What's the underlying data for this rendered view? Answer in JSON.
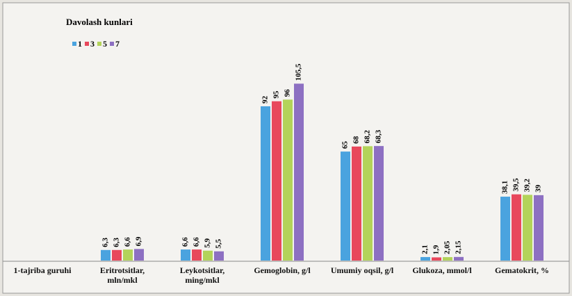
{
  "chart_data": {
    "type": "bar",
    "legend_title": "Davolash kunlari",
    "categories": [
      "1-tajriba guruhi",
      "Eritrotsitlar, mln/mkl",
      "Leykotsitlar, ming/mkl",
      "Gemoglobin, g/l",
      "Umumiy oqsil, g/l",
      "Glukoza, mmol/l",
      "Gematokrit, %"
    ],
    "series": [
      {
        "name": "1",
        "color": "#4aa3df",
        "values": [
          null,
          6.3,
          6.6,
          92,
          65,
          2.1,
          38.1
        ],
        "value_labels": [
          null,
          "6,3",
          "6,6",
          "92",
          "65",
          "2,1",
          "38,1"
        ]
      },
      {
        "name": "3",
        "color": "#e8485c",
        "values": [
          null,
          6.3,
          6.6,
          95,
          68,
          1.9,
          39.5
        ],
        "value_labels": [
          null,
          "6,3",
          "6,6",
          "95",
          "68",
          "1,9",
          "39,5"
        ]
      },
      {
        "name": "5",
        "color": "#b3d35a",
        "values": [
          null,
          6.6,
          5.9,
          96,
          68.2,
          2.05,
          39.2
        ],
        "value_labels": [
          null,
          "6,6",
          "5,9",
          "96",
          "68,2",
          "2,05",
          "39,2"
        ]
      },
      {
        "name": "7",
        "color": "#8d70c2",
        "values": [
          null,
          6.9,
          5.5,
          105.5,
          68.3,
          2.15,
          39
        ],
        "value_labels": [
          null,
          "6,9",
          "5,5",
          "105,5",
          "68,3",
          "2,15",
          "39"
        ]
      }
    ],
    "ylim": [
      0,
      150
    ]
  }
}
